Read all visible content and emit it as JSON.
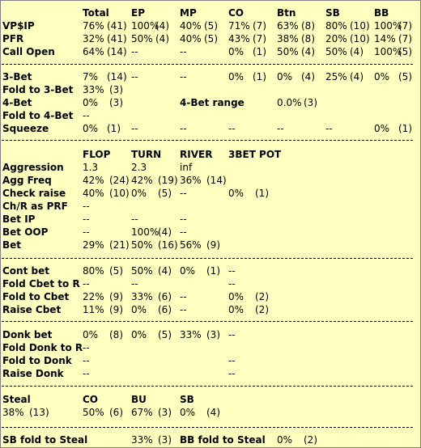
{
  "cols": [
    "Total",
    "EP",
    "MP",
    "CO",
    "Btn",
    "SB",
    "BB"
  ],
  "rows1": [
    {
      "label": "VP$IP",
      "cells": [
        [
          "76%",
          "(41)"
        ],
        [
          "100%",
          "(4)"
        ],
        [
          "40%",
          "(5)"
        ],
        [
          "71%",
          "(7)"
        ],
        [
          "63%",
          "(8)"
        ],
        [
          "80%",
          "(10)"
        ],
        [
          "100%",
          "(7)"
        ]
      ]
    },
    {
      "label": "PFR",
      "cells": [
        [
          "32%",
          "(41)"
        ],
        [
          "50%",
          "(4)"
        ],
        [
          "40%",
          "(5)"
        ],
        [
          "43%",
          "(7)"
        ],
        [
          "38%",
          "(8)"
        ],
        [
          "20%",
          "(10)"
        ],
        [
          "14%",
          "(7)"
        ]
      ]
    },
    {
      "label": "Call Open",
      "cells": [
        [
          "64%",
          "(14)"
        ],
        [
          "--",
          ""
        ],
        [
          "--",
          ""
        ],
        [
          "0%",
          "(1)"
        ],
        [
          "50%",
          "(4)"
        ],
        [
          "50%",
          "(4)"
        ],
        [
          "100%",
          "(5)"
        ]
      ]
    }
  ],
  "threebet": {
    "label": "3-Bet",
    "cells": [
      [
        "7%",
        "(14)"
      ],
      [
        "--",
        ""
      ],
      [
        "--",
        ""
      ],
      [
        "0%",
        "(1)"
      ],
      [
        "0%",
        "(4)"
      ],
      [
        "25%",
        "(4)"
      ],
      [
        "0%",
        "(5)"
      ]
    ],
    "fold3_label": "Fold to 3-Bet",
    "fold3_val": "33%",
    "fold3_n": "(3)",
    "fourbet_label": "4-Bet",
    "fourbet_val": "0%",
    "fourbet_n": "(3)",
    "range_label": "4-Bet range",
    "range_val": "0.0%",
    "range_n": "(3)",
    "fold4_label": "Fold to 4-Bet",
    "fold4_val": "--",
    "squeeze_label": "Squeeze",
    "squeeze_cells": [
      [
        "0%",
        "(1)"
      ],
      [
        "--",
        ""
      ],
      [
        "--",
        ""
      ],
      [
        "--",
        ""
      ],
      [
        "--",
        ""
      ],
      [
        "--",
        ""
      ],
      [
        "0%",
        "(1)"
      ]
    ]
  },
  "post": {
    "headers": [
      "FLOP",
      "TURN",
      "RIVER",
      "3BET POT"
    ],
    "rows": [
      {
        "label": "Aggression",
        "cells": [
          [
            "1.3",
            ""
          ],
          [
            "2.3",
            ""
          ],
          [
            "inf",
            ""
          ],
          [
            "",
            ""
          ]
        ]
      },
      {
        "label": "Agg Freq",
        "cells": [
          [
            "42%",
            "(24)"
          ],
          [
            "42%",
            "(19)"
          ],
          [
            "36%",
            "(14)"
          ],
          [
            "",
            ""
          ]
        ]
      },
      {
        "label": "Check raise",
        "cells": [
          [
            "40%",
            "(10)"
          ],
          [
            "0%",
            "(5)"
          ],
          [
            "--",
            ""
          ],
          [
            "0%",
            "(1)"
          ]
        ]
      },
      {
        "label": "Ch/R as PRF",
        "cells": [
          [
            "--",
            ""
          ],
          [
            "",
            ""
          ],
          [
            "",
            ""
          ],
          [
            "",
            ""
          ]
        ]
      },
      {
        "label": "Bet IP",
        "cells": [
          [
            "--",
            ""
          ],
          [
            "--",
            ""
          ],
          [
            "--",
            ""
          ],
          [
            "",
            ""
          ]
        ]
      },
      {
        "label": "Bet OOP",
        "cells": [
          [
            "--",
            ""
          ],
          [
            "100%",
            "(4)"
          ],
          [
            "--",
            ""
          ],
          [
            "",
            ""
          ]
        ]
      },
      {
        "label": "Bet",
        "cells": [
          [
            "29%",
            "(21)"
          ],
          [
            "50%",
            "(16)"
          ],
          [
            "56%",
            "(9)"
          ],
          [
            "",
            ""
          ]
        ]
      }
    ]
  },
  "cbet": {
    "rows": [
      {
        "label": "Cont bet",
        "cells": [
          [
            "80%",
            "(5)"
          ],
          [
            "50%",
            "(4)"
          ],
          [
            "0%",
            "(1)"
          ],
          [
            "--",
            ""
          ]
        ]
      },
      {
        "label": "Fold Cbet to R",
        "cells": [
          [
            "--",
            ""
          ],
          [
            "--",
            ""
          ],
          [
            "",
            ""
          ],
          [
            "--",
            ""
          ]
        ]
      },
      {
        "label": "Fold to Cbet",
        "cells": [
          [
            "22%",
            "(9)"
          ],
          [
            "33%",
            "(6)"
          ],
          [
            "--",
            ""
          ],
          [
            "0%",
            "(2)"
          ]
        ]
      },
      {
        "label": "Raise Cbet",
        "cells": [
          [
            "11%",
            "(9)"
          ],
          [
            "0%",
            "(6)"
          ],
          [
            "--",
            ""
          ],
          [
            "0%",
            "(2)"
          ]
        ]
      }
    ]
  },
  "donk": {
    "rows": [
      {
        "label": "Donk bet",
        "cells": [
          [
            "0%",
            "(8)"
          ],
          [
            "0%",
            "(5)"
          ],
          [
            "33%",
            "(3)"
          ],
          [
            "--",
            ""
          ]
        ]
      },
      {
        "label": "Fold Donk to R",
        "cells": [
          [
            "--",
            ""
          ],
          [
            "",
            ""
          ],
          [
            "",
            ""
          ],
          [
            "",
            ""
          ]
        ]
      },
      {
        "label": "Fold to Donk",
        "cells": [
          [
            "--",
            ""
          ],
          [
            "",
            ""
          ],
          [
            "",
            ""
          ],
          [
            "--",
            ""
          ]
        ]
      },
      {
        "label": "Raise Donk",
        "cells": [
          [
            "--",
            ""
          ],
          [
            "",
            ""
          ],
          [
            "",
            ""
          ],
          [
            "--",
            ""
          ]
        ]
      }
    ]
  },
  "steal": {
    "label": "Steal",
    "co": "CO",
    "bu": "BU",
    "sb": "SB",
    "total": "38%",
    "total_n": "(13)",
    "co_val": "50%",
    "co_n": "(6)",
    "bu_val": "67%",
    "bu_n": "(3)",
    "sb_val": "0%",
    "sb_n": "(4)"
  },
  "foldsteal": {
    "sb_label": "SB fold to Steal",
    "sb_val": "33%",
    "sb_n": "(3)",
    "bb_label": "BB fold to Steal",
    "bb_val": "0%",
    "bb_n": "(2)"
  }
}
